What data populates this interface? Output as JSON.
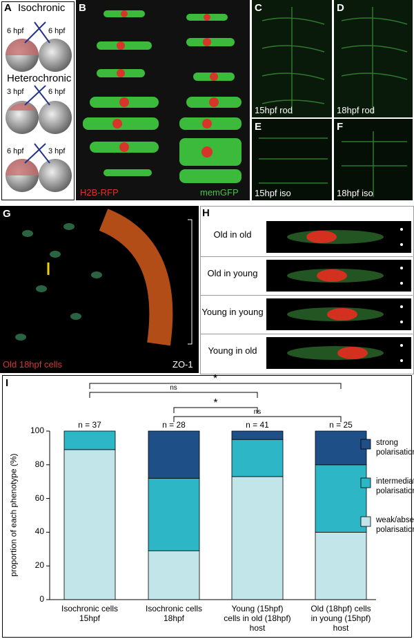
{
  "panels": {
    "A": {
      "letter": "A",
      "iso": "Isochronic",
      "iso_left": "6 hpf",
      "iso_right": "6 hpf",
      "hetero": "Heterochronic",
      "het1_left": "3 hpf",
      "het1_right": "6 hpf",
      "het2_left": "6 hpf",
      "het2_right": "3 hpf"
    },
    "B": {
      "letter": "B",
      "red_label": "H2B-RFP",
      "green_label": "memGFP"
    },
    "C": {
      "letter": "C",
      "label": "15hpf rod"
    },
    "D": {
      "letter": "D",
      "label": "18hpf rod"
    },
    "E": {
      "letter": "E",
      "label": "15hpf iso"
    },
    "F": {
      "letter": "F",
      "label": "18hpf iso"
    },
    "G": {
      "letter": "G",
      "red_label": "Old 18hpf cells",
      "white_label": "ZO-1"
    },
    "H": {
      "letter": "H",
      "rows": [
        "Old in old",
        "Old in young",
        "Young in young",
        "Young in old"
      ]
    },
    "I": {
      "letter": "I"
    }
  },
  "chart_data": {
    "type": "stacked_bar",
    "ylabel": "proportion of each phenotype (%)",
    "categories": [
      "Isochronic cells 15hpf",
      "Isochronic cells 18hpf",
      "Young (15hpf) cells in old (18hpf) host",
      "Old (18hpf) cells in young (15hpf) host"
    ],
    "n_labels": [
      "n = 37",
      "n = 28",
      "n = 41",
      "n = 25"
    ],
    "series": [
      {
        "name": "weak/absent polarisation",
        "color": "#c2e5ea",
        "values": [
          89,
          29,
          73,
          40
        ]
      },
      {
        "name": "intermediate polarisation",
        "color": "#2db6c6",
        "values": [
          11,
          43,
          22,
          40
        ]
      },
      {
        "name": "strong polarisation",
        "color": "#1e4f86",
        "values": [
          0,
          28,
          5,
          20
        ]
      }
    ],
    "ylim": [
      0,
      100
    ],
    "yticks": [
      0,
      20,
      40,
      60,
      80,
      100
    ],
    "annotations": [
      "*",
      "ns",
      "*",
      "ns"
    ]
  }
}
